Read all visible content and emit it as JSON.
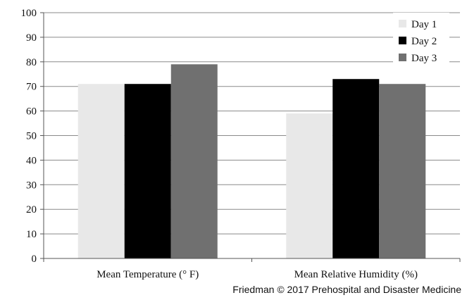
{
  "chart_data": {
    "type": "bar",
    "categories": [
      "Mean Temperature (° F)",
      "Mean Relative Humidity (%)"
    ],
    "series": [
      {
        "name": "Day 1",
        "color": "#e8e8e8",
        "values": [
          71,
          59
        ]
      },
      {
        "name": "Day 2",
        "color": "#000000",
        "values": [
          71,
          73
        ]
      },
      {
        "name": "Day 3",
        "color": "#707070",
        "values": [
          79,
          71
        ]
      }
    ],
    "ylim": [
      0,
      100
    ],
    "yticks": [
      0,
      10,
      20,
      30,
      40,
      50,
      60,
      70,
      80,
      90,
      100
    ],
    "grid": true,
    "legend_position": "top-right"
  },
  "credit": "Friedman © 2017 Prehospital and Disaster Medicine"
}
